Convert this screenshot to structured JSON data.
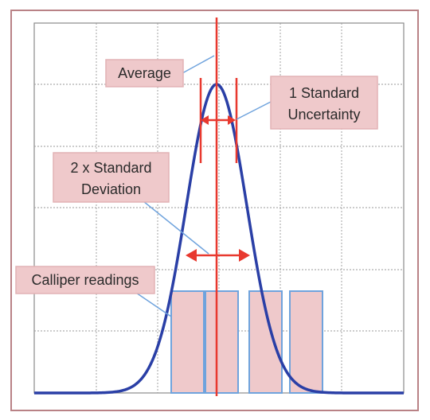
{
  "colors": {
    "frame": "#b98286",
    "grid": "#9a9a9a",
    "curve": "#2a3fa6",
    "average_line": "#e8392f",
    "arrow": "#e8392f",
    "bar_fill": "#efc9cb",
    "bar_stroke": "#6fa3dd",
    "callout_fill": "#efc9cb",
    "callout_stroke": "#e2b2b5",
    "leader": "#6fa3dd"
  },
  "callouts": {
    "average": "Average",
    "one_std_line1": "1 Standard",
    "one_std_line2": "Uncertainty",
    "two_std_line1": "2 x Standard",
    "two_std_line2": "Deviation",
    "readings": "Calliper readings"
  },
  "icons": {
    "arrow_head": "double-headed-arrow"
  },
  "chart_data": {
    "type": "diagram",
    "curve": "normal-distribution",
    "readings_bars": 4,
    "grid": true
  }
}
